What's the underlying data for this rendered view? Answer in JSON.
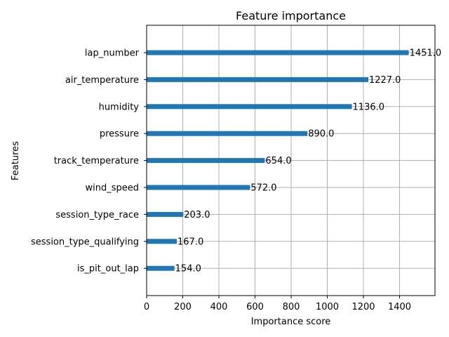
{
  "chart_data": {
    "type": "bar",
    "orientation": "horizontal",
    "title": "Feature importance",
    "xlabel": "Importance score",
    "ylabel": "Features",
    "categories": [
      "lap_number",
      "air_temperature",
      "humidity",
      "pressure",
      "track_temperature",
      "wind_speed",
      "session_type_race",
      "session_type_qualifying",
      "is_pit_out_lap"
    ],
    "values": [
      1451.0,
      1227.0,
      1136.0,
      890.0,
      654.0,
      572.0,
      203.0,
      167.0,
      154.0
    ],
    "value_labels": [
      "1451.0",
      "1227.0",
      "1136.0",
      "890.0",
      "654.0",
      "572.0",
      "203.0",
      "167.0",
      "154.0"
    ],
    "xlim": [
      0,
      1596
    ],
    "xticks": [
      0,
      200,
      400,
      600,
      800,
      1000,
      1200,
      1400
    ],
    "grid": true,
    "bar_color": "#1f77b4"
  }
}
